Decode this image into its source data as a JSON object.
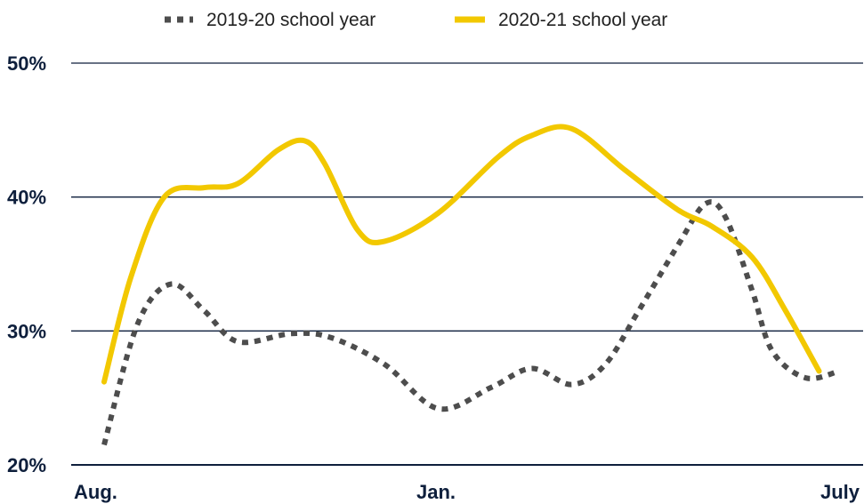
{
  "chart_data": {
    "type": "line",
    "title": "",
    "xlabel": "",
    "ylabel": "",
    "x_tick_labels": [
      "Aug.",
      "Jan.",
      "July"
    ],
    "y_tick_labels": [
      "20%",
      "30%",
      "40%",
      "50%"
    ],
    "y_ticks": [
      20,
      30,
      40,
      50
    ],
    "ylim": [
      20,
      50
    ],
    "grid": "horizontal",
    "legend": "top-center",
    "series": [
      {
        "name": "2019-20 school year",
        "color": "#4d4d4d",
        "style": "dotted",
        "points": [
          {
            "x": 0.0,
            "y": 21.5
          },
          {
            "x": 0.5,
            "y": 30.5
          },
          {
            "x": 1.0,
            "y": 33.5
          },
          {
            "x": 1.5,
            "y": 31.5
          },
          {
            "x": 2.0,
            "y": 29.2
          },
          {
            "x": 2.8,
            "y": 29.8
          },
          {
            "x": 3.4,
            "y": 29.5
          },
          {
            "x": 4.2,
            "y": 27.5
          },
          {
            "x": 5.0,
            "y": 24.2
          },
          {
            "x": 5.8,
            "y": 25.8
          },
          {
            "x": 6.4,
            "y": 27.2
          },
          {
            "x": 7.0,
            "y": 26.0
          },
          {
            "x": 7.5,
            "y": 27.5
          },
          {
            "x": 8.0,
            "y": 31.5
          },
          {
            "x": 8.6,
            "y": 36.5
          },
          {
            "x": 9.0,
            "y": 39.5
          },
          {
            "x": 9.3,
            "y": 38.5
          },
          {
            "x": 9.7,
            "y": 33.0
          },
          {
            "x": 10.0,
            "y": 28.5
          },
          {
            "x": 10.5,
            "y": 26.5
          },
          {
            "x": 11.0,
            "y": 27.0
          }
        ]
      },
      {
        "name": "2020-21 school year",
        "color": "#f2c800",
        "style": "solid",
        "points": [
          {
            "x": 0.0,
            "y": 26.2
          },
          {
            "x": 0.4,
            "y": 34.0
          },
          {
            "x": 0.9,
            "y": 40.0
          },
          {
            "x": 1.5,
            "y": 40.7
          },
          {
            "x": 2.0,
            "y": 41.0
          },
          {
            "x": 2.6,
            "y": 43.5
          },
          {
            "x": 3.0,
            "y": 44.2
          },
          {
            "x": 3.3,
            "y": 42.5
          },
          {
            "x": 3.8,
            "y": 37.5
          },
          {
            "x": 4.2,
            "y": 36.7
          },
          {
            "x": 5.0,
            "y": 38.8
          },
          {
            "x": 5.9,
            "y": 43.0
          },
          {
            "x": 6.4,
            "y": 44.6
          },
          {
            "x": 7.0,
            "y": 45.1
          },
          {
            "x": 7.8,
            "y": 42.0
          },
          {
            "x": 8.6,
            "y": 39.0
          },
          {
            "x": 9.1,
            "y": 37.8
          },
          {
            "x": 9.7,
            "y": 35.5
          },
          {
            "x": 10.2,
            "y": 31.5
          },
          {
            "x": 10.7,
            "y": 27.0
          }
        ]
      }
    ]
  }
}
